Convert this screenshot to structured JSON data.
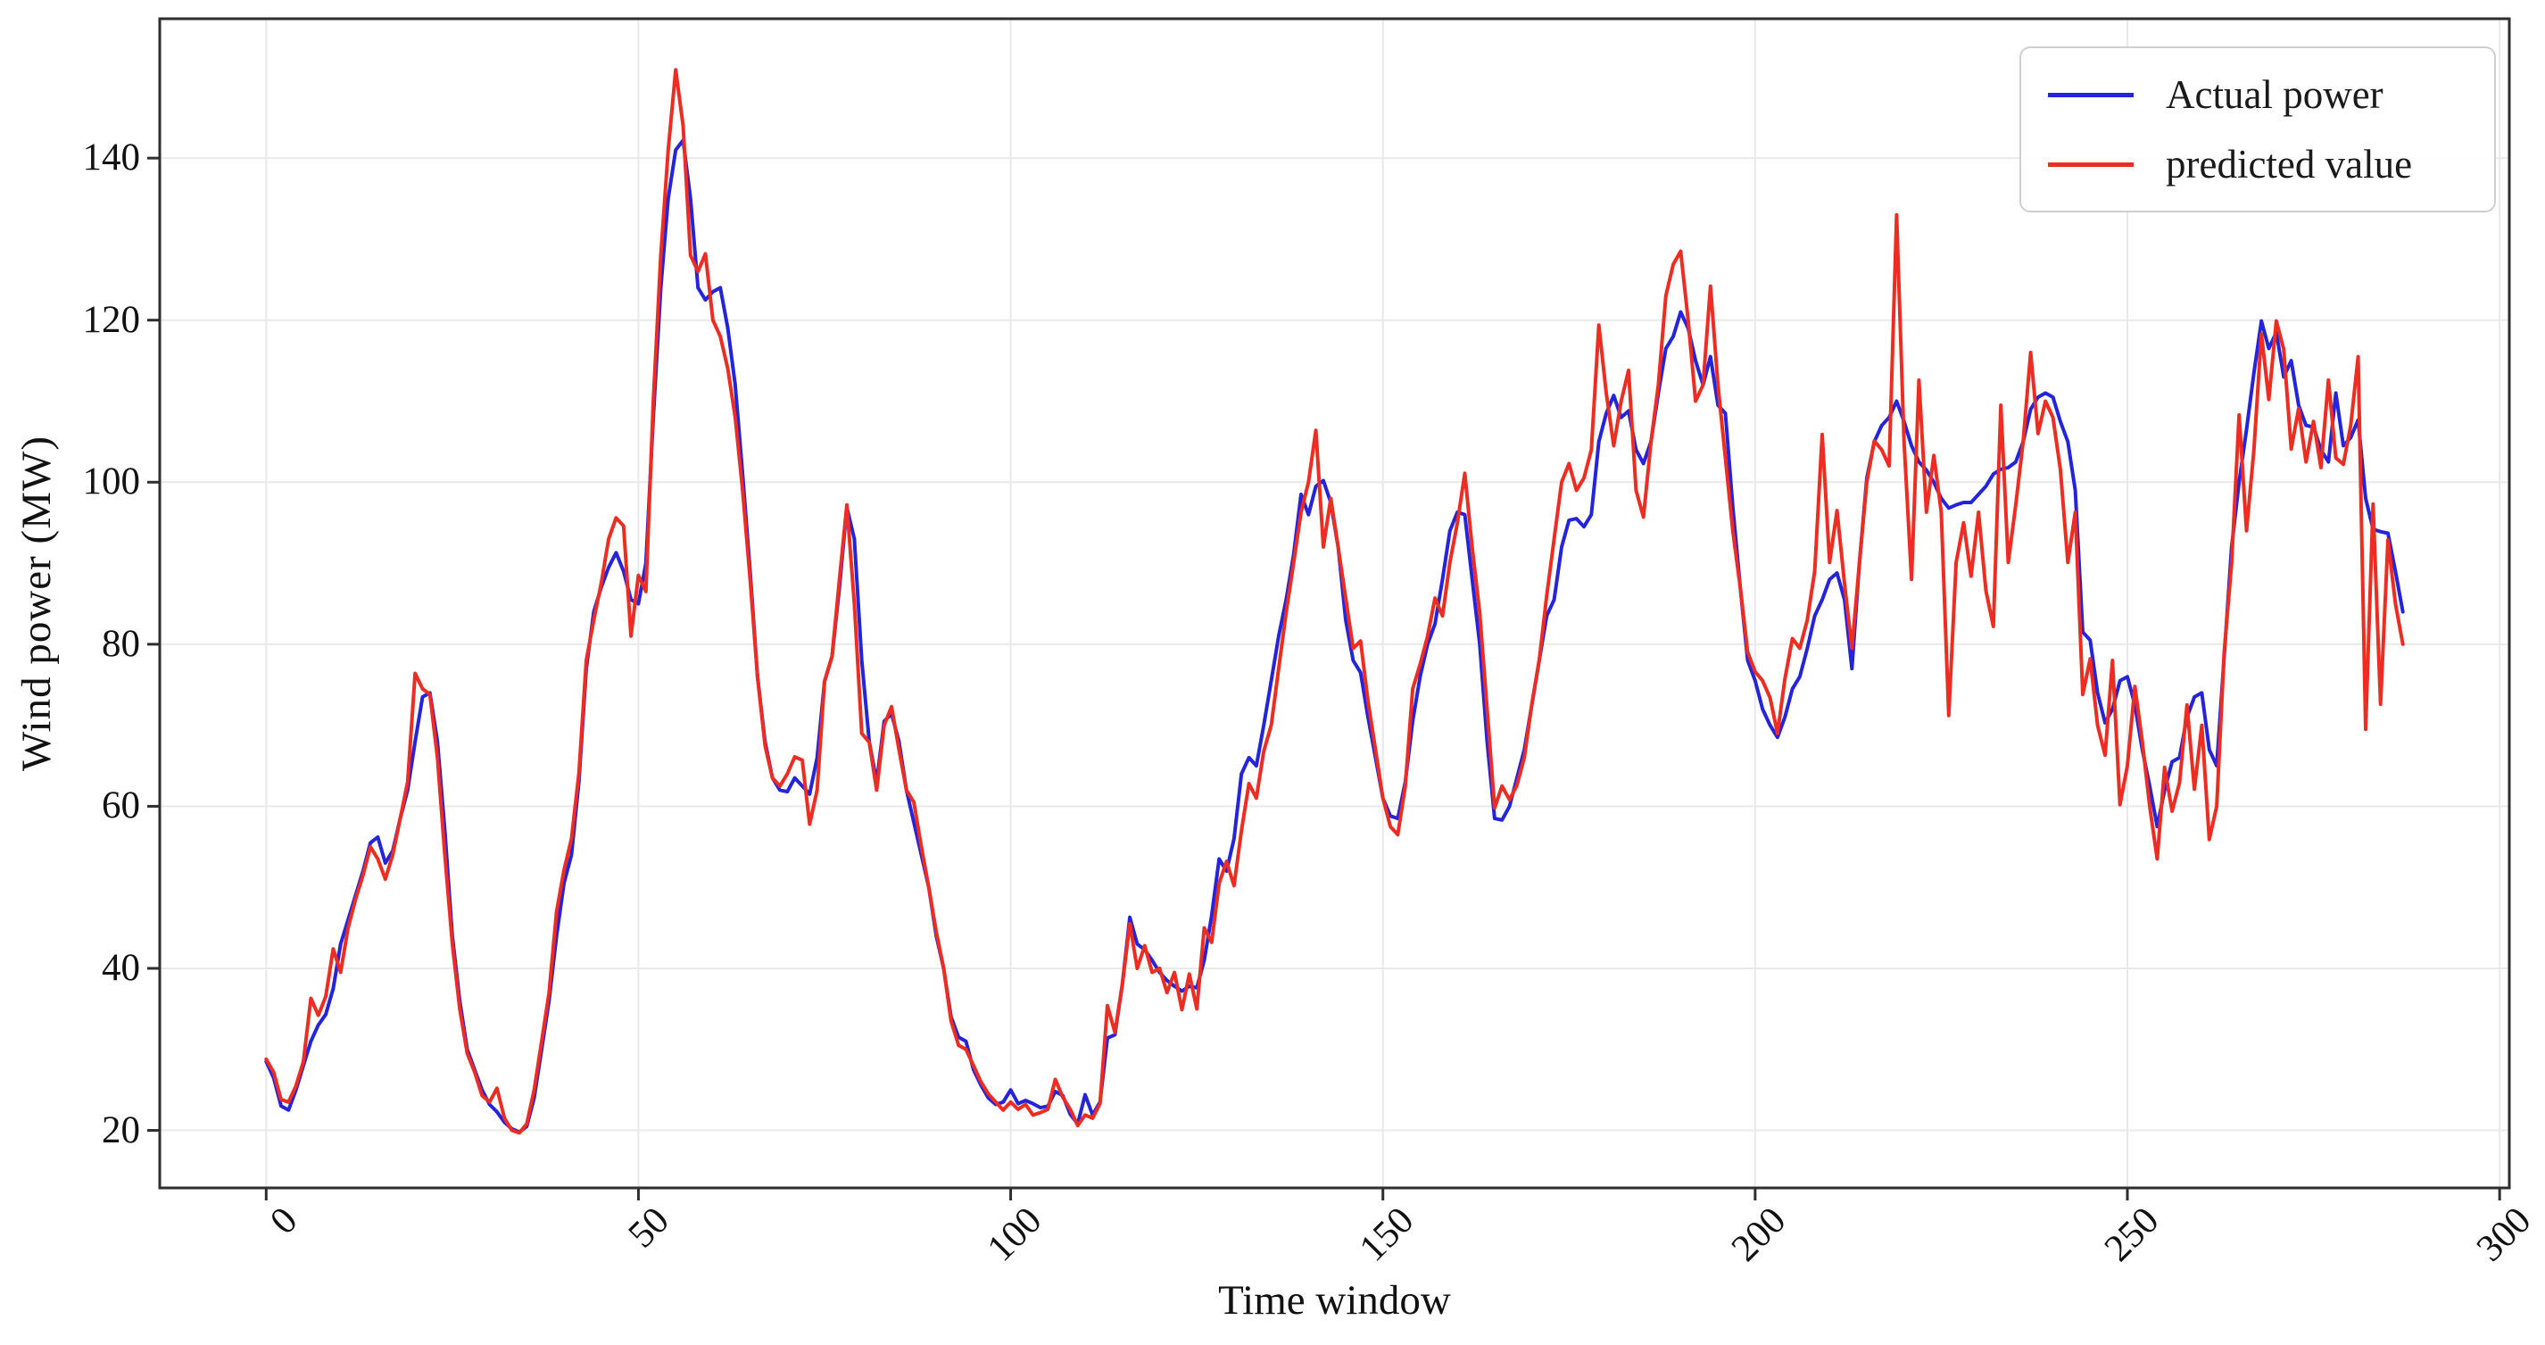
{
  "figure": {
    "background": "#ffffff",
    "axis_color": "#2e2e2e",
    "grid_color": "#e9e9e9",
    "tick_label_color": "#111111"
  },
  "chart_data": {
    "type": "line",
    "title": "",
    "xlabel": "Time window",
    "ylabel": "Wind power (MW)",
    "x_ticks": [
      0,
      50,
      100,
      150,
      200,
      250,
      300
    ],
    "y_ticks": [
      20,
      40,
      60,
      80,
      100,
      120,
      140
    ],
    "xlim": [
      -14.3,
      301.3
    ],
    "ylim": [
      12.9,
      157.2
    ],
    "grid": true,
    "legend_position": "top-right",
    "x_start": 0,
    "x_step": 1,
    "series": [
      {
        "name": "Actual power",
        "color": "#2424dc",
        "width": 4,
        "values": [
          28.5,
          26.5,
          23,
          22.5,
          25,
          28,
          31,
          33,
          34.3,
          37.5,
          43,
          46,
          49,
          52,
          55.5,
          56.2,
          53,
          54.5,
          58.5,
          62,
          68,
          73.5,
          74,
          68,
          57,
          44,
          36,
          30,
          27.5,
          25,
          23.2,
          22.3,
          21,
          20.2,
          19.8,
          20.5,
          24,
          30,
          36,
          44,
          50.5,
          54,
          63,
          77,
          84,
          87,
          89.5,
          91.3,
          89,
          85.5,
          85,
          90,
          108,
          124,
          135,
          141,
          142.2,
          135,
          124,
          122.5,
          123.5,
          124,
          119,
          112,
          101,
          89,
          76,
          68,
          63.5,
          62,
          61.8,
          63.5,
          62.5,
          61.5,
          66,
          75.4,
          78.5,
          87,
          96.9,
          93,
          78,
          68,
          63,
          70.5,
          71.4,
          68,
          62,
          58,
          54,
          50,
          44,
          40,
          34,
          31.5,
          31,
          27.5,
          25.6,
          24,
          23.2,
          23.5,
          25,
          23.3,
          23.7,
          23.3,
          22.8,
          23,
          24.8,
          24.3,
          22,
          20.8,
          24.4,
          21.9,
          23.5,
          31.4,
          31.8,
          38,
          46.3,
          43,
          42.3,
          41,
          39.5,
          38.5,
          37.8,
          37.2,
          37.8,
          37.6,
          41,
          46.5,
          53.5,
          52,
          56,
          64,
          66,
          65,
          70,
          75.5,
          81,
          85.5,
          91,
          98.5,
          96,
          99.5,
          100.2,
          97.5,
          91.9,
          83,
          78,
          76.5,
          71,
          66,
          61,
          58.8,
          58.5,
          63,
          70.5,
          76,
          80,
          82.5,
          88,
          94,
          96.3,
          96,
          88,
          80,
          68,
          58.5,
          58.3,
          60,
          63.5,
          67,
          72.5,
          78,
          83.5,
          85.5,
          92,
          95.3,
          95.5,
          94.5,
          96,
          105,
          108.5,
          110.7,
          108,
          108.8,
          104,
          102.3,
          105,
          111,
          116.5,
          118,
          121,
          119,
          115,
          112,
          115.5,
          109.5,
          108.5,
          97,
          87,
          78,
          75.5,
          72,
          70,
          68.5,
          71,
          74.5,
          76,
          79.5,
          83.5,
          85.5,
          88,
          88.8,
          85.5,
          77,
          90,
          100.5,
          105,
          107,
          108,
          110,
          107.5,
          104.5,
          102.5,
          101.5,
          100,
          98,
          96.8,
          97.2,
          97.5,
          97.5,
          98.5,
          99.5,
          101,
          101.6,
          101.8,
          102.5,
          105,
          109,
          110.5,
          111,
          110.5,
          107.5,
          105,
          99,
          81.5,
          80.5,
          74,
          70.3,
          72,
          75.5,
          76,
          72.5,
          67,
          62.5,
          57.5,
          62,
          65.5,
          66,
          71,
          73.5,
          74,
          67,
          65,
          78.5,
          92,
          100,
          106.5,
          113.5,
          119.9,
          116.5,
          118.5,
          113,
          115,
          109.5,
          107,
          106.8,
          104,
          102.5,
          111,
          104.5,
          105.5,
          107.7,
          98,
          94.2,
          93.9,
          93.7,
          89,
          84
        ]
      },
      {
        "name": "predicted value",
        "color": "#ee2c22",
        "width": 4,
        "values": [
          28.8,
          27.2,
          23.8,
          23.5,
          25.5,
          28.5,
          36.3,
          34.2,
          36.5,
          42.4,
          39.5,
          45,
          48.5,
          51.5,
          55,
          53.5,
          51,
          54,
          58.5,
          63,
          76.4,
          74.5,
          73.8,
          66,
          54,
          43,
          35,
          29.5,
          27.2,
          24.3,
          23.5,
          25.2,
          21.5,
          20,
          19.7,
          20.8,
          25,
          31,
          37,
          47,
          52.1,
          56,
          64,
          78,
          83,
          87.5,
          93,
          95.6,
          94.6,
          81,
          88.5,
          86.5,
          110,
          128,
          141,
          150.9,
          144,
          128,
          126,
          128.2,
          120,
          118,
          114,
          108,
          99,
          88,
          76,
          67.5,
          63.5,
          62.5,
          64,
          66.1,
          65.7,
          57.8,
          62,
          75.4,
          78.5,
          88,
          97.2,
          85,
          69,
          67.9,
          62,
          70,
          72.3,
          67,
          62,
          60.5,
          55,
          50,
          44.5,
          40,
          33.5,
          30.5,
          30,
          28,
          26,
          24.5,
          23.5,
          22.5,
          23.5,
          22.6,
          23.2,
          21.9,
          22.2,
          22.6,
          26.3,
          24.1,
          22.6,
          20.6,
          21.9,
          21.5,
          23.3,
          35.4,
          32.1,
          38,
          45.5,
          40,
          42.8,
          39.5,
          40,
          37,
          39.5,
          34.9,
          39.3,
          35,
          45,
          43.2,
          50.5,
          53.2,
          50.2,
          57,
          62.8,
          61,
          66.8,
          70,
          77,
          83.9,
          90,
          96.3,
          100,
          106.4,
          92,
          98,
          91.9,
          85.7,
          79.5,
          80.4,
          73,
          67,
          61,
          57.5,
          56.5,
          62.5,
          74.5,
          77.5,
          81,
          85.7,
          83.5,
          90.1,
          95,
          101.1,
          91.9,
          83.9,
          72,
          59.8,
          62.5,
          60.8,
          62.6,
          66,
          72.6,
          78,
          86,
          93,
          100,
          102.3,
          99,
          100.5,
          104,
          119.4,
          111,
          104.5,
          110,
          113.8,
          99,
          95.7,
          104.9,
          112,
          123,
          126.9,
          128.5,
          120,
          110,
          112,
          124.2,
          112,
          103,
          94,
          87,
          79,
          76.6,
          75.5,
          73.4,
          69,
          75.7,
          80.7,
          79.5,
          83,
          89,
          105.9,
          90.1,
          96.5,
          87.5,
          79.5,
          90,
          100,
          105.1,
          104,
          102,
          133,
          105.1,
          88,
          112.6,
          96.3,
          103.3,
          96.3,
          71.2,
          90.1,
          95,
          88.4,
          96.3,
          86.6,
          82.2,
          109.5,
          90.1,
          97.2,
          105,
          116,
          106,
          110,
          108,
          101.6,
          90.1,
          96.3,
          73.8,
          78.2,
          70,
          66.3,
          78,
          60.2,
          65,
          74.8,
          68,
          60,
          53.5,
          64.8,
          59.4,
          62.9,
          72.5,
          62.1,
          70,
          55.9,
          60,
          79,
          90,
          108.3,
          94,
          104,
          118.3,
          110.2,
          119.9,
          116.4,
          104.1,
          109.1,
          102.5,
          107.5,
          101.8,
          112.6,
          103,
          102.2,
          107,
          115.5,
          69.5,
          97.3,
          72.6,
          92.9,
          85,
          80
        ]
      }
    ]
  }
}
